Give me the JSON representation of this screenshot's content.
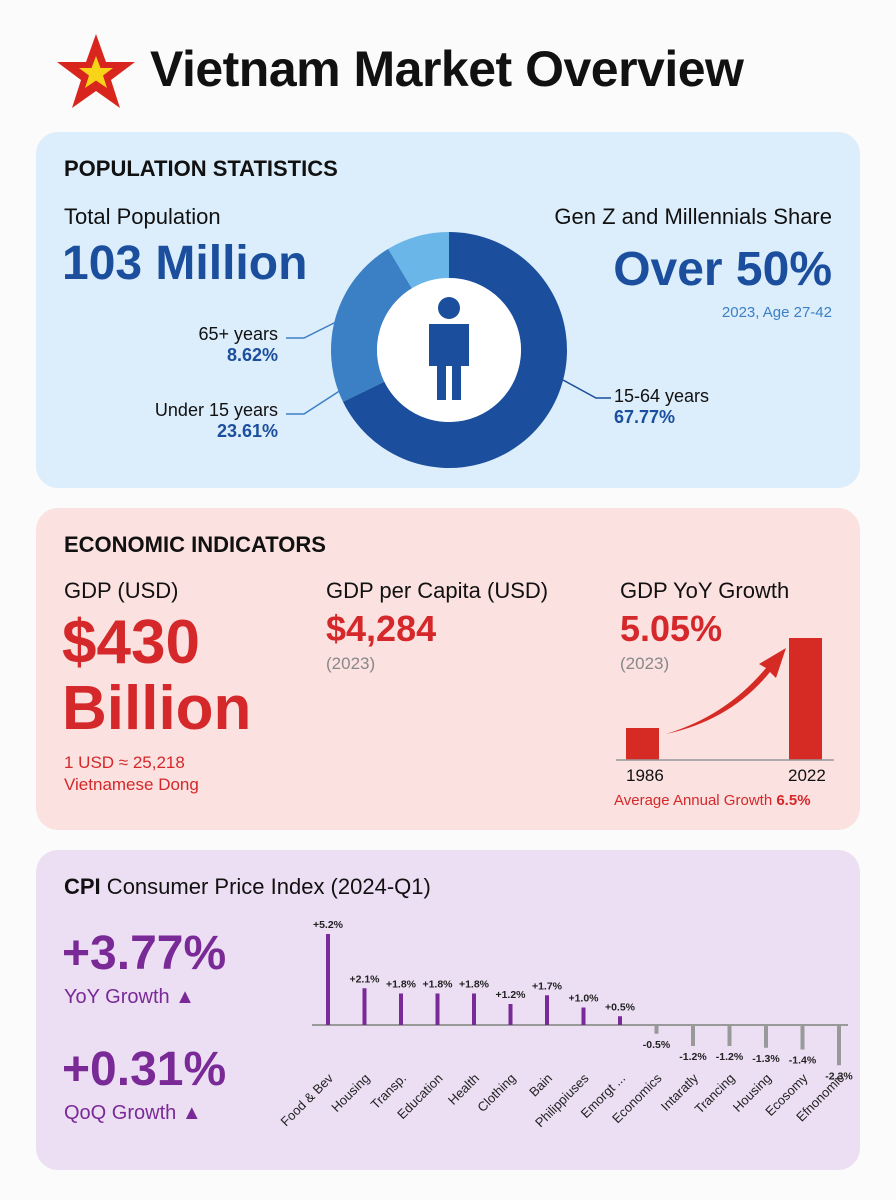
{
  "header": {
    "title": "Vietnam Market Overview",
    "flag_icon": "vietnam-star-icon",
    "colors": {
      "flag_red": "#d8261f",
      "star": "#f7d417"
    }
  },
  "population": {
    "heading": "POPULATION STATISTICS",
    "total_label": "Total Population",
    "total_value": "103 Million",
    "genz_label": "Gen Z and Millennials Share",
    "genz_value": "Over 50%",
    "genz_note": "2023, Age 27-42",
    "segments": [
      {
        "label": "15-64 years",
        "value": "67.77%",
        "pct": 67.77,
        "color": "#1b4f9d"
      },
      {
        "label": "Under 15 years",
        "value": "23.61%",
        "pct": 23.61,
        "color": "#3b80c4"
      },
      {
        "label": "65+ years",
        "value": "8.62%",
        "pct": 8.62,
        "color": "#6bb6e8"
      }
    ],
    "center_icon": "person-icon"
  },
  "economy": {
    "heading": "ECONOMIC INDICATORS",
    "gdp_label": "GDP (USD)",
    "gdp_value_line1": "$430",
    "gdp_value_line2": "Billion",
    "fx_line1": "1 USD ≈ 25,218",
    "fx_line2": "Vietnamese Dong",
    "gdppc_label": "GDP per Capita (USD)",
    "gdppc_value": "$4,284",
    "gdppc_year": "(2023)",
    "growth_label": "GDP YoY Growth",
    "growth_value": "5.05%",
    "growth_year": "(2023)",
    "growth_chart": {
      "categories": [
        "1986",
        "2022"
      ],
      "footer": "Average Annual Growth",
      "footer_value": "6.5%"
    }
  },
  "cpi": {
    "heading_bold": "CPI",
    "heading_rest": " Consumer Price Index (2024-Q1)",
    "yoy_value": "+3.77%",
    "yoy_label": "YoY Growth ▲",
    "qoq_value": "+0.31%",
    "qoq_label": "QoQ Growth ▲"
  },
  "chart_data": {
    "type": "bar",
    "categories": [
      "Food & Bev",
      "Housing",
      "Transp.",
      "Education",
      "Health",
      "Clothing",
      "Bain",
      "Philippiuses",
      "Emorgt ...",
      "Economics",
      "Intaratly",
      "Trancing",
      "Housing",
      "Ecosomy",
      "Efnonomic"
    ],
    "values": [
      5.2,
      2.1,
      1.8,
      1.8,
      1.8,
      1.2,
      1.7,
      1.0,
      0.5,
      -0.5,
      -1.2,
      -1.2,
      -1.3,
      -1.4,
      -2.3
    ],
    "labels": [
      "+5.2%",
      "+2.1%",
      "+1.8%",
      "+1.8%",
      "+1.8%",
      "+1.2%",
      "+1.7%",
      "+1.0%",
      "+0.5%",
      "-0.5%",
      "-1.2%",
      "-1.2%",
      "-1.3%",
      "-1.4%",
      "-2.3%"
    ],
    "colors": {
      "positive": "#7a2a96",
      "negative": "#999999"
    }
  }
}
